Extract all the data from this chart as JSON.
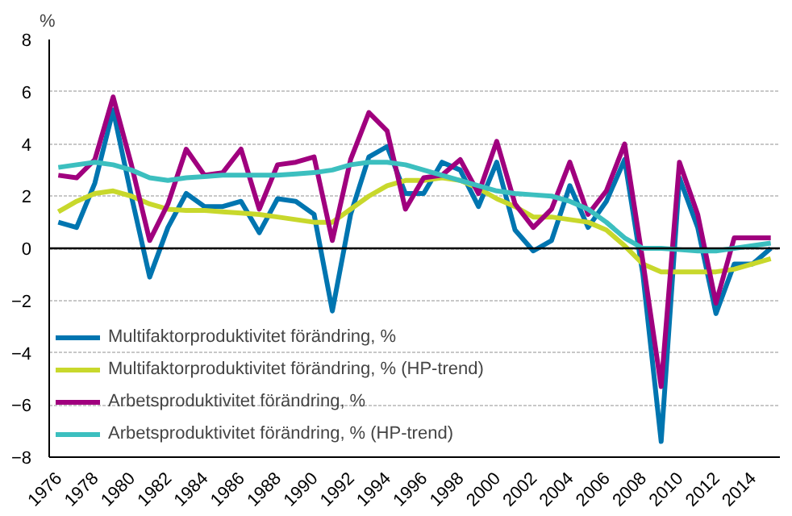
{
  "chart_data": {
    "type": "line",
    "ylabel": "%",
    "x": [
      1976,
      1977,
      1978,
      1979,
      1980,
      1981,
      1982,
      1983,
      1984,
      1985,
      1986,
      1987,
      1988,
      1989,
      1990,
      1991,
      1992,
      1993,
      1994,
      1995,
      1996,
      1997,
      1998,
      1999,
      2000,
      2001,
      2002,
      2003,
      2004,
      2005,
      2006,
      2007,
      2008,
      2009,
      2010,
      2011,
      2012,
      2013,
      2014,
      2015
    ],
    "series": [
      {
        "name": "Multifaktorproduktivitet förändring, %",
        "color": "#0075b0",
        "values": [
          1.0,
          0.8,
          2.5,
          5.3,
          2.0,
          -1.1,
          0.8,
          2.1,
          1.6,
          1.6,
          1.8,
          0.6,
          1.9,
          1.8,
          1.3,
          -2.4,
          1.3,
          3.5,
          3.9,
          2.1,
          2.1,
          3.3,
          3.0,
          1.6,
          3.3,
          0.7,
          -0.1,
          0.3,
          2.4,
          0.8,
          1.8,
          3.4,
          -1.0,
          -7.4,
          2.7,
          0.8,
          -2.5,
          -0.6,
          -0.6,
          0.0
        ]
      },
      {
        "name": "Multifaktorproduktivitet förändring, % (HP-trend)",
        "color": "#c8d82c",
        "values": [
          1.4,
          1.8,
          2.1,
          2.2,
          2.0,
          1.7,
          1.5,
          1.45,
          1.45,
          1.4,
          1.35,
          1.3,
          1.2,
          1.1,
          1.0,
          1.0,
          1.5,
          2.0,
          2.4,
          2.6,
          2.6,
          2.7,
          2.6,
          2.3,
          1.9,
          1.6,
          1.2,
          1.2,
          1.1,
          1.0,
          0.7,
          0.1,
          -0.6,
          -0.9,
          -0.9,
          -0.9,
          -0.9,
          -0.8,
          -0.6,
          -0.4
        ]
      },
      {
        "name": "Arbetsproduktivitet förändring, %",
        "color": "#a0007e",
        "values": [
          2.8,
          2.7,
          3.4,
          5.8,
          3.2,
          0.3,
          1.7,
          3.8,
          2.8,
          2.9,
          3.8,
          1.5,
          3.2,
          3.3,
          3.5,
          0.3,
          3.4,
          5.2,
          4.5,
          1.5,
          2.7,
          2.8,
          3.4,
          2.1,
          4.1,
          1.7,
          0.8,
          1.5,
          3.3,
          1.3,
          2.2,
          4.0,
          -0.5,
          -5.3,
          3.3,
          1.3,
          -2.1,
          0.4,
          0.4,
          0.4
        ]
      },
      {
        "name": "Arbetsproduktivitet förändring, % (HP-trend)",
        "color": "#3cbfbf",
        "values": [
          3.1,
          3.2,
          3.3,
          3.2,
          3.0,
          2.7,
          2.6,
          2.7,
          2.75,
          2.8,
          2.8,
          2.8,
          2.8,
          2.85,
          2.9,
          3.0,
          3.2,
          3.3,
          3.3,
          3.2,
          3.0,
          2.8,
          2.6,
          2.4,
          2.2,
          2.1,
          2.05,
          2.0,
          1.8,
          1.5,
          1.0,
          0.4,
          0.0,
          0.0,
          -0.05,
          -0.1,
          -0.1,
          0.0,
          0.1,
          0.2
        ]
      }
    ],
    "xlim": [
      1975.5,
      2015.5
    ],
    "ylim": [
      -8,
      8
    ],
    "xticks": [
      1976,
      1978,
      1980,
      1982,
      1984,
      1986,
      1988,
      1990,
      1992,
      1994,
      1996,
      1998,
      2000,
      2002,
      2004,
      2006,
      2008,
      2010,
      2012,
      2014
    ],
    "yticks": [
      -8,
      -6,
      -4,
      -2,
      0,
      2,
      4,
      6,
      8
    ],
    "ref_lines": [
      {
        "axis": "y",
        "value": 0,
        "color": "#000000"
      }
    ],
    "grid": "y",
    "legend": "bottom left",
    "line_style": "solid",
    "marker": "none"
  }
}
